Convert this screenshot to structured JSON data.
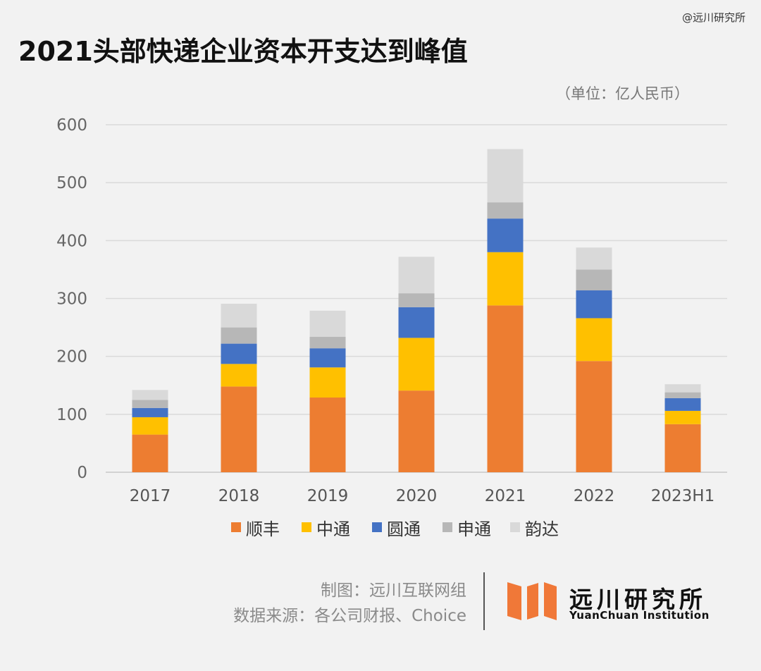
{
  "watermark": "@远川研究所",
  "footer": {
    "credit": "制图：远川互联网组",
    "source": "数据来源：各公司财报、Choice"
  },
  "logo": {
    "name_cn": "远川研究所",
    "name_en": "YuanChuan Institution",
    "color": "#f07838"
  },
  "chart_data": {
    "type": "bar",
    "stacked": true,
    "title": "2021头部快递企业资本开支达到峰值",
    "unit": "（单位：亿人民币）",
    "categories": [
      "2017",
      "2018",
      "2019",
      "2020",
      "2021",
      "2022",
      "2023H1"
    ],
    "ylim": [
      0,
      600
    ],
    "yticks": [
      0,
      100,
      200,
      300,
      400,
      500,
      600
    ],
    "grid": true,
    "legend_position": "bottom",
    "series": [
      {
        "name": "顺丰",
        "color": "#ed7d31",
        "values": [
          65,
          148,
          129,
          141,
          288,
          192,
          83
        ]
      },
      {
        "name": "中通",
        "color": "#ffc000",
        "values": [
          30,
          39,
          52,
          91,
          92,
          74,
          23
        ]
      },
      {
        "name": "圆通",
        "color": "#4472c4",
        "values": [
          16,
          35,
          33,
          53,
          58,
          48,
          22
        ]
      },
      {
        "name": "申通",
        "color": "#b7b7b7",
        "values": [
          14,
          28,
          20,
          24,
          28,
          36,
          10
        ]
      },
      {
        "name": "韵达",
        "color": "#d9d9d9",
        "values": [
          17,
          41,
          45,
          63,
          92,
          38,
          14
        ]
      }
    ]
  }
}
